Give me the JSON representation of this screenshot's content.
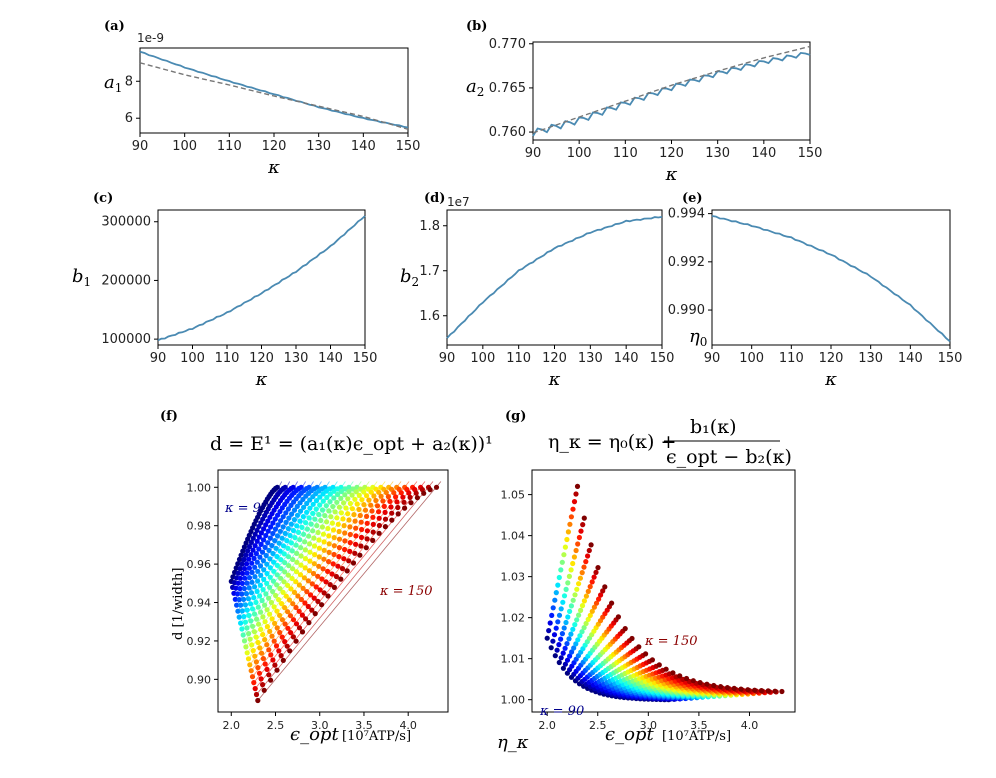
{
  "colors": {
    "line": "#4a8ab2",
    "fit": "#777777",
    "kappa90": "#00008b",
    "kappa150": "#8b0000"
  },
  "panels": {
    "a": {
      "label": "(a)",
      "ylabel": "a",
      "ysub": "1",
      "xlabel": "κ",
      "offset": "1e-9",
      "yticks": [
        "6",
        "8"
      ]
    },
    "b": {
      "label": "(b)",
      "ylabel": "a",
      "ysub": "2",
      "xlabel": "κ",
      "yticks": [
        "0.760",
        "0.765",
        "0.770"
      ]
    },
    "c": {
      "label": "(c)",
      "ylabel": "b",
      "ysub": "1",
      "xlabel": "κ",
      "yticks": [
        "100000",
        "200000",
        "300000"
      ]
    },
    "d": {
      "label": "(d)",
      "ylabel": "b",
      "ysub": "2",
      "xlabel": "κ",
      "offset": "1e7",
      "yticks": [
        "1.6",
        "1.7",
        "1.8"
      ]
    },
    "e": {
      "label": "(e)",
      "ylabel": "η",
      "ysub": "0",
      "xlabel": "κ",
      "yticks": [
        "0.990",
        "0.992",
        "0.994"
      ]
    },
    "f": {
      "label": "(f)",
      "title": "d = E¹ = (a₁(κ)ϵ_opt + a₂(κ))¹",
      "ylabel": "d [1/width]",
      "xlabel": "ϵ_opt",
      "xunit": "[10⁷ATP/s]",
      "ann_low": "κ = 90",
      "ann_high": "κ = 150",
      "yticks": [
        "0.90",
        "0.92",
        "0.94",
        "0.96",
        "0.98",
        "1.00"
      ],
      "xticks": [
        "2.0",
        "2.5",
        "3.0",
        "3.5",
        "4.0"
      ]
    },
    "g": {
      "label": "(g)",
      "title_lhs": "η_κ = η₀(κ) +",
      "title_num": "b₁(κ)",
      "title_den": "ϵ_opt − b₂(κ)",
      "ylabel": "η_κ",
      "xlabel": "ϵ_opt",
      "xunit": "[10⁷ATP/s]",
      "ann_low": "κ = 90",
      "ann_high": "κ = 150",
      "yticks": [
        "1.00",
        "1.01",
        "1.02",
        "1.03",
        "1.04",
        "1.05"
      ],
      "xticks": [
        "2.0",
        "2.5",
        "3.0",
        "3.5",
        "4.0"
      ]
    }
  },
  "chart_data": [
    {
      "panel": "a",
      "type": "line",
      "x": [
        90,
        100,
        110,
        120,
        130,
        140,
        150
      ],
      "series": [
        {
          "values": [
            9.6,
            8.75,
            8.0,
            7.3,
            6.6,
            6.0,
            5.5
          ]
        },
        {
          "values": [
            9.0,
            8.35,
            7.8,
            7.2,
            6.65,
            6.1,
            5.4
          ]
        }
      ],
      "xlabel": "κ",
      "ylabel": "a₁",
      "xlim": [
        90,
        150
      ],
      "ylim": [
        5.2,
        9.8
      ],
      "xticks": [
        90,
        100,
        110,
        120,
        130,
        140,
        150
      ],
      "yticks": [
        6,
        8
      ],
      "offset": "1e-9"
    },
    {
      "panel": "b",
      "type": "line",
      "x": [
        90,
        100,
        110,
        120,
        130,
        140,
        150
      ],
      "series": [
        {
          "values": [
            0.76,
            0.7614,
            0.7633,
            0.7651,
            0.7667,
            0.768,
            0.769
          ]
        },
        {
          "values": [
            0.7599,
            0.7617,
            0.7635,
            0.7653,
            0.7669,
            0.7684,
            0.7697
          ]
        }
      ],
      "xlabel": "κ",
      "ylabel": "a₂",
      "xlim": [
        90,
        150
      ],
      "ylim": [
        0.7591,
        0.7702
      ],
      "xticks": [
        90,
        100,
        110,
        120,
        130,
        140,
        150
      ],
      "yticks": [
        0.76,
        0.765,
        0.77
      ]
    },
    {
      "panel": "c",
      "type": "line",
      "x": [
        90,
        100,
        110,
        120,
        130,
        140,
        150
      ],
      "series": [
        {
          "values": [
            98000,
            118000,
            145000,
            178000,
            215000,
            258000,
            310000
          ]
        }
      ],
      "xlabel": "κ",
      "ylabel": "b₁",
      "xlim": [
        90,
        150
      ],
      "ylim": [
        90000,
        320000
      ],
      "xticks": [
        90,
        100,
        110,
        120,
        130,
        140,
        150
      ],
      "yticks": [
        100000,
        200000,
        300000
      ]
    },
    {
      "panel": "d",
      "type": "line",
      "x": [
        90,
        100,
        110,
        120,
        130,
        140,
        150
      ],
      "series": [
        {
          "values": [
            1.55,
            1.63,
            1.7,
            1.75,
            1.785,
            1.81,
            1.82
          ]
        }
      ],
      "xlabel": "κ",
      "ylabel": "b₂",
      "xlim": [
        90,
        150
      ],
      "ylim": [
        1.535,
        1.835
      ],
      "xticks": [
        90,
        100,
        110,
        120,
        130,
        140,
        150
      ],
      "yticks": [
        1.6,
        1.7,
        1.8
      ],
      "offset": "1e7"
    },
    {
      "panel": "e",
      "type": "line",
      "x": [
        90,
        100,
        110,
        120,
        130,
        140,
        150
      ],
      "series": [
        {
          "values": [
            0.9939,
            0.9935,
            0.993,
            0.9923,
            0.9914,
            0.9902,
            0.9887
          ]
        }
      ],
      "xlabel": "κ",
      "ylabel": "η₀",
      "xlim": [
        90,
        150
      ],
      "ylim": [
        0.98855,
        0.99415
      ],
      "xticks": [
        90,
        100,
        110,
        120,
        130,
        140,
        150
      ],
      "yticks": [
        0.99,
        0.992,
        0.994
      ]
    },
    {
      "panel": "f",
      "type": "scatter",
      "xlabel": "ϵ_opt [10⁷ATP/s]",
      "ylabel": "d [1/width]",
      "xlim": [
        1.85,
        4.45
      ],
      "ylim": [
        0.883,
        1.009
      ],
      "xticks": [
        2.0,
        2.5,
        3.0,
        3.5,
        4.0
      ],
      "yticks": [
        0.9,
        0.92,
        0.94,
        0.96,
        0.98,
        1.0
      ],
      "series": [
        {
          "name": "κ = 90",
          "x_start": 2.0,
          "x_end": 2.52,
          "y_start": 0.951,
          "y_end": 1.0
        },
        {
          "name": "κ = 150",
          "x_start": 2.3,
          "x_end": 4.32,
          "y_start": 0.889,
          "y_end": 1.0
        }
      ],
      "n_curves": 21
    },
    {
      "panel": "g",
      "type": "scatter",
      "xlabel": "ϵ_opt [10⁷ATP/s]",
      "ylabel": "η_κ",
      "xlim": [
        1.85,
        4.45
      ],
      "ylim": [
        0.997,
        1.056
      ],
      "xticks": [
        2.0,
        2.5,
        3.0,
        3.5,
        4.0
      ],
      "yticks": [
        1.0,
        1.01,
        1.02,
        1.03,
        1.04,
        1.05
      ],
      "series": [
        {
          "name": "κ = 90",
          "x_start": 2.0,
          "x_end": 3.2,
          "y_start": 1.015,
          "y_end": 1.0
        },
        {
          "name": "κ = 150",
          "x_start": 2.3,
          "x_end": 4.32,
          "y_start": 1.052,
          "y_end": 1.002
        }
      ],
      "n_curves": 21
    }
  ]
}
